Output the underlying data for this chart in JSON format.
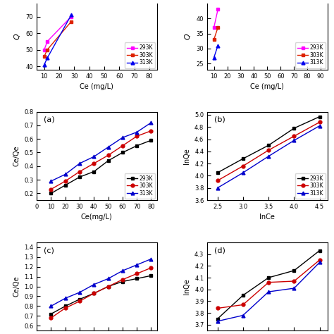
{
  "panel_a": {
    "label": "(a)",
    "xlabel": "Ce(mg/L)",
    "ylabel": "Ce/Qe",
    "xlim": [
      0,
      84
    ],
    "ylim": [
      0.15,
      0.8
    ],
    "xticks": [
      0,
      10,
      20,
      30,
      40,
      50,
      60,
      70,
      80
    ],
    "yticks": [
      0.2,
      0.3,
      0.4,
      0.5,
      0.6,
      0.7,
      0.8
    ],
    "series": {
      "293K": {
        "color": "#000000",
        "marker": "s",
        "x": [
          10,
          20,
          30,
          40,
          50,
          60,
          70,
          80
        ],
        "y": [
          0.2,
          0.26,
          0.32,
          0.36,
          0.44,
          0.5,
          0.55,
          0.59
        ]
      },
      "303K": {
        "color": "#cc0000",
        "marker": "o",
        "x": [
          10,
          20,
          30,
          40,
          50,
          60,
          70,
          80
        ],
        "y": [
          0.23,
          0.29,
          0.36,
          0.42,
          0.48,
          0.55,
          0.62,
          0.66
        ]
      },
      "313K": {
        "color": "#0000cc",
        "marker": "^",
        "x": [
          10,
          20,
          30,
          40,
          50,
          60,
          70,
          80
        ],
        "y": [
          0.29,
          0.34,
          0.42,
          0.47,
          0.54,
          0.61,
          0.65,
          0.72
        ]
      }
    },
    "legend_loc": "lower right"
  },
  "panel_b": {
    "label": "(b)",
    "xlabel": "InCe",
    "ylabel": "InQe",
    "xlim": [
      2.3,
      4.65
    ],
    "ylim": [
      3.6,
      5.05
    ],
    "xticks": [
      2.5,
      3.0,
      3.5,
      4.0,
      4.5
    ],
    "yticks": [
      3.6,
      3.8,
      4.0,
      4.2,
      4.4,
      4.6,
      4.8,
      5.0
    ],
    "series": {
      "293K": {
        "color": "#000000",
        "marker": "s",
        "x": [
          2.5,
          3.0,
          3.5,
          4.0,
          4.5
        ],
        "y": [
          4.05,
          4.28,
          4.5,
          4.78,
          4.97
        ]
      },
      "303K": {
        "color": "#cc0000",
        "marker": "o",
        "x": [
          2.5,
          3.0,
          3.5,
          4.0,
          4.5
        ],
        "y": [
          3.92,
          4.16,
          4.42,
          4.65,
          4.88
        ]
      },
      "313K": {
        "color": "#0000cc",
        "marker": "^",
        "x": [
          2.5,
          3.0,
          3.5,
          4.0,
          4.5
        ],
        "y": [
          3.8,
          4.05,
          4.32,
          4.58,
          4.82
        ]
      }
    },
    "legend_loc": "lower right"
  },
  "panel_c": {
    "label": "(c)",
    "xlabel": "Ce(mg/L)",
    "ylabel": "Ce/Qe",
    "xlim": [
      0,
      84
    ],
    "ylim": [
      0.55,
      1.45
    ],
    "xticks": [
      0,
      10,
      20,
      30,
      40,
      50,
      60,
      70,
      80
    ],
    "yticks": [
      0.6,
      0.7,
      0.8,
      0.9,
      1.0,
      1.1,
      1.2,
      1.3,
      1.4
    ],
    "series": {
      "293K": {
        "color": "#000000",
        "marker": "s",
        "x": [
          10,
          20,
          30,
          40,
          50,
          60,
          70,
          80
        ],
        "y": [
          0.72,
          0.8,
          0.87,
          0.93,
          1.0,
          1.05,
          1.08,
          1.11
        ]
      },
      "303K": {
        "color": "#cc0000",
        "marker": "o",
        "x": [
          10,
          20,
          30,
          40,
          50,
          60,
          70,
          80
        ],
        "y": [
          0.68,
          0.78,
          0.85,
          0.93,
          1.0,
          1.07,
          1.13,
          1.19
        ]
      },
      "313K": {
        "color": "#0000cc",
        "marker": "^",
        "x": [
          10,
          20,
          30,
          40,
          50,
          60,
          70,
          80
        ],
        "y": [
          0.8,
          0.88,
          0.94,
          1.02,
          1.08,
          1.16,
          1.22,
          1.28
        ]
      }
    }
  },
  "panel_d": {
    "label": "(d)",
    "xlabel": "InCe",
    "ylabel": "InQe",
    "xlim": [
      2.3,
      4.65
    ],
    "ylim": [
      3.65,
      4.4
    ],
    "xticks": [
      2.5,
      3.0,
      3.5,
      4.0,
      4.5
    ],
    "yticks": [
      3.7,
      3.8,
      3.9,
      4.0,
      4.1,
      4.2,
      4.3
    ],
    "series": {
      "293K": {
        "color": "#000000",
        "marker": "s",
        "x": [
          2.5,
          3.0,
          3.5,
          4.0,
          4.5
        ],
        "y": [
          3.75,
          3.95,
          4.1,
          4.16,
          4.33
        ]
      },
      "303K": {
        "color": "#cc0000",
        "marker": "o",
        "x": [
          2.5,
          3.0,
          3.5,
          4.0,
          4.5
        ],
        "y": [
          3.84,
          3.87,
          4.06,
          4.07,
          4.25
        ]
      },
      "313K": {
        "color": "#0000cc",
        "marker": "^",
        "x": [
          2.5,
          3.0,
          3.5,
          4.0,
          4.5
        ],
        "y": [
          3.73,
          3.78,
          3.98,
          4.01,
          4.23
        ]
      }
    }
  },
  "top_left": {
    "ylabel": "Q",
    "xlabel": "Ce (mg/L)",
    "xlim": [
      5,
      85
    ],
    "ylim": [
      38,
      78
    ],
    "xticks": [
      10,
      20,
      30,
      40,
      50,
      60,
      70,
      80
    ],
    "yticks": [
      40,
      50,
      60,
      70
    ],
    "show_top_spine": false,
    "series": {
      "293K": {
        "color": "#ff00ff",
        "marker": "s",
        "x": [
          10,
          12,
          28
        ],
        "y": [
          50,
          55,
          70
        ]
      },
      "303K": {
        "color": "#dd2200",
        "marker": "s",
        "x": [
          10,
          12,
          28
        ],
        "y": [
          46,
          50,
          67
        ]
      },
      "313K": {
        "color": "#0000ee",
        "marker": "^",
        "x": [
          10,
          12,
          28
        ],
        "y": [
          41,
          45,
          71
        ]
      }
    }
  },
  "top_right": {
    "ylabel": "Q",
    "xlabel": "Ce (mg/L)",
    "xlim": [
      5,
      95
    ],
    "ylim": [
      23,
      45
    ],
    "xticks": [
      10,
      20,
      30,
      40,
      50,
      60,
      70,
      80,
      90
    ],
    "yticks": [
      25,
      30,
      35,
      40
    ],
    "show_top_spine": false,
    "series": {
      "293K": {
        "color": "#ff00ff",
        "marker": "s",
        "x": [
          10,
          13
        ],
        "y": [
          37,
          43
        ]
      },
      "303K": {
        "color": "#dd2200",
        "marker": "s",
        "x": [
          10,
          13
        ],
        "y": [
          33,
          37
        ]
      },
      "313K": {
        "color": "#0000ee",
        "marker": "^",
        "x": [
          10,
          13
        ],
        "y": [
          27,
          31
        ]
      }
    }
  }
}
